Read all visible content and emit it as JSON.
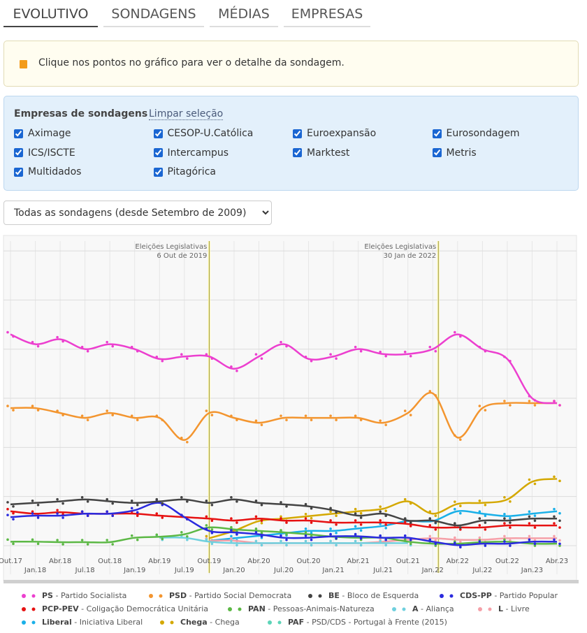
{
  "tabs": [
    "EVOLUTIVO",
    "SONDAGENS",
    "MÉDIAS",
    "EMPRESAS"
  ],
  "notice": "Clique nos pontos no gráfico para ver o detalhe da sondagem.",
  "filter": {
    "title": "Empresas de sondagens",
    "clear": "Limpar seleção",
    "companies": [
      {
        "name": "Aximage",
        "checked": true
      },
      {
        "name": "CESOP-U.Católica",
        "checked": true
      },
      {
        "name": "Euroexpansão",
        "checked": true
      },
      {
        "name": "Eurosondagem",
        "checked": true
      },
      {
        "name": "ICS/ISCTE",
        "checked": true
      },
      {
        "name": "Intercampus",
        "checked": true
      },
      {
        "name": "Marktest",
        "checked": true
      },
      {
        "name": "Metris",
        "checked": true
      },
      {
        "name": "Multidados",
        "checked": true
      },
      {
        "name": "Pitagórica",
        "checked": true
      }
    ]
  },
  "select": {
    "selected": "Todas as sondagens (desde Setembro de 2009)"
  },
  "chart_data": {
    "type": "line",
    "categories": [
      "Out.17",
      "Jan.18",
      "Abr.18",
      "Jul.18",
      "Out.18",
      "Jan.19",
      "Abr.19",
      "Jul.19",
      "Out.19",
      "Jan.20",
      "Abr.20",
      "Jul.20",
      "Out.20",
      "Jan.21",
      "Abr.21",
      "Jul.21",
      "Out.21",
      "Jan.22",
      "Abr.22",
      "Jul.22",
      "Out.22",
      "Jan.23",
      "Abr.23"
    ],
    "ylim": [
      -2,
      62
    ],
    "yticks": [
      0,
      10,
      20,
      30,
      40,
      50,
      60
    ],
    "grid": true,
    "annotations": [
      {
        "text": [
          "Eleições Legislativas",
          "6 Out de 2019"
        ],
        "category": "Out.19"
      },
      {
        "text": [
          "Eleições Legislativas",
          "30 Jan de 2022"
        ],
        "category": "Jan.22"
      }
    ],
    "series": [
      {
        "name": "PS",
        "description": "Partido Socialista",
        "color": "#ec3fcf",
        "values": [
          43,
          41,
          42,
          40,
          41,
          40,
          38,
          38.5,
          38.5,
          36,
          38.5,
          41,
          38,
          38.5,
          40,
          39,
          39,
          40,
          43,
          40,
          38,
          30,
          29
        ]
      },
      {
        "name": "PSD",
        "description": "Partido Social Democrata",
        "color": "#f3952f",
        "values": [
          28,
          28,
          27,
          26,
          27,
          26,
          26,
          21.5,
          27,
          26,
          25,
          26,
          26,
          26,
          26,
          25,
          27,
          31,
          22,
          28,
          29,
          29,
          29
        ]
      },
      {
        "name": "BE",
        "description": "Bloco de Esquerda",
        "color": "#444444",
        "values": [
          8.4,
          8.7,
          9,
          9.4,
          9,
          8.7,
          9,
          9.4,
          8.7,
          9.4,
          8.7,
          8.4,
          8,
          7.2,
          6.1,
          6.5,
          5.1,
          5.1,
          4.1,
          5.1,
          5.1,
          5.5,
          5.5
        ]
      },
      {
        "name": "CDS-PP",
        "description": "Partido Popular",
        "color": "#2a2ade",
        "values": [
          5.8,
          6.1,
          6.1,
          6.5,
          6.5,
          7.2,
          8.7,
          5.8,
          3,
          2.7,
          2.3,
          1.6,
          1.6,
          1.9,
          1.9,
          1.6,
          1.6,
          0.8,
          0.1,
          0.4,
          0.4,
          0.8,
          0.8
        ]
      },
      {
        "name": "PCP-PEV",
        "description": "Coligação Democrática Unitária",
        "color": "#e61212",
        "values": [
          7,
          6.5,
          6.8,
          6.5,
          6.5,
          6.5,
          6.1,
          5.8,
          5.5,
          5.1,
          5.5,
          5.1,
          5.1,
          4.7,
          4.7,
          4.7,
          4.4,
          3.7,
          3.7,
          3.7,
          4.1,
          4.1,
          4.1
        ]
      },
      {
        "name": "PAN",
        "description": "Pessoas-Animais-Natureza",
        "color": "#5cb845",
        "values": [
          0.8,
          0.8,
          0.7,
          0.7,
          0.7,
          1.6,
          1.8,
          2.3,
          3.7,
          3.3,
          3,
          2.7,
          2.3,
          1.8,
          1.6,
          1.6,
          0.8,
          0.4,
          0.4,
          0.7,
          0.8,
          0.4,
          0.4
        ]
      },
      {
        "name": "A",
        "description": "Aliança",
        "color": "#6fd0de",
        "values": [
          null,
          null,
          null,
          null,
          null,
          null,
          1.6,
          1.6,
          0.8,
          0.5,
          0.5,
          0.5,
          0.5,
          0.5,
          0.5,
          0.5,
          0.5,
          null,
          null,
          null,
          null,
          null,
          null
        ]
      },
      {
        "name": "L",
        "description": "Livre",
        "color": "#f5a0a8",
        "values": [
          null,
          null,
          null,
          null,
          null,
          null,
          null,
          null,
          1,
          1,
          0.5,
          0.5,
          0.5,
          0.5,
          0.5,
          0.8,
          1.2,
          1.5,
          1.2,
          1.2,
          1.5,
          1.5,
          1.5
        ]
      },
      {
        "name": "Liberal",
        "description": "Iniciativa Liberal",
        "color": "#1ab0e8",
        "values": [
          null,
          null,
          null,
          null,
          null,
          null,
          null,
          null,
          1,
          1.5,
          2,
          2.5,
          3,
          3,
          3.5,
          4,
          5,
          5,
          7,
          6.5,
          6,
          6.5,
          7
        ]
      },
      {
        "name": "Chega",
        "description": "Chega",
        "color": "#d4a800",
        "values": [
          null,
          null,
          null,
          null,
          null,
          null,
          null,
          null,
          1.5,
          3,
          5,
          5.5,
          6,
          6.5,
          7,
          7.5,
          9,
          6.5,
          8.5,
          8.7,
          9.4,
          13,
          13.6
        ]
      },
      {
        "name": "PAF",
        "description": "PSD/CDS - Portugal à Frente (2015)",
        "color": "#5dd4b8",
        "values": [
          null,
          null,
          null,
          null,
          null,
          null,
          null,
          null,
          null,
          null,
          null,
          null,
          null,
          null,
          null,
          null,
          null,
          null,
          null,
          null,
          null,
          null,
          null
        ]
      }
    ]
  }
}
